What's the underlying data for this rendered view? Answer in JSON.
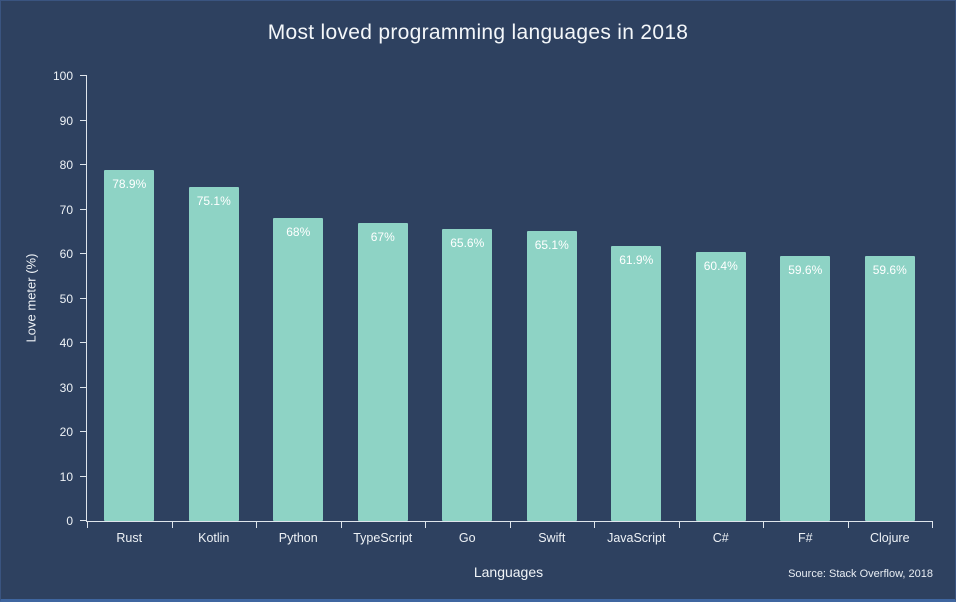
{
  "page": {
    "source": "Source: Stack Overflow, 2018"
  },
  "chart_data": {
    "type": "bar",
    "title": "Most loved programming languages in 2018",
    "xlabel": "Languages",
    "ylabel": "Love meter (%)",
    "categories": [
      "Rust",
      "Kotlin",
      "Python",
      "TypeScript",
      "Go",
      "Swift",
      "JavaScript",
      "C#",
      "F#",
      "Clojure"
    ],
    "values": [
      78.9,
      75.1,
      68,
      67,
      65.6,
      65.1,
      61.9,
      60.4,
      59.6,
      59.6
    ],
    "value_labels": [
      "78.9%",
      "75.1%",
      "68%",
      "67%",
      "65.6%",
      "65.1%",
      "61.9%",
      "60.4%",
      "59.6%",
      "59.6%"
    ],
    "ylim": [
      0,
      100
    ],
    "yticks": [
      0,
      10,
      20,
      30,
      40,
      50,
      60,
      70,
      80,
      90,
      100
    ],
    "grid": false,
    "legend": "none",
    "colors": {
      "background": "#2e4160",
      "bar": "#8ed3c5",
      "text": "#ffffff",
      "axis": "#dfe5ec"
    }
  }
}
